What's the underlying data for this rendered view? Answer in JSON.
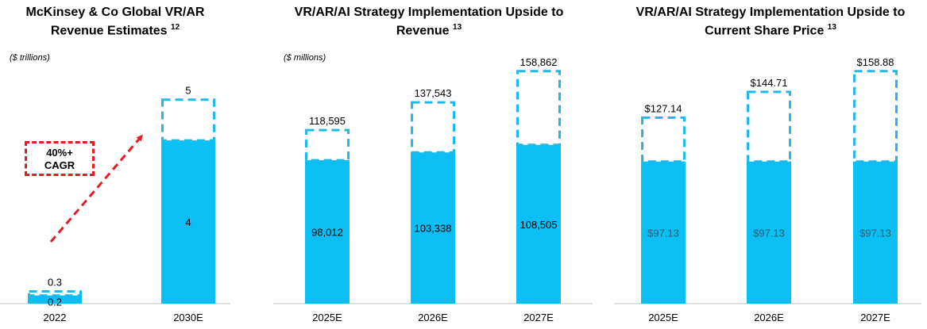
{
  "charts": [
    {
      "title_line1": "McKinsey & Co Global VR/AR",
      "title_line2": "Revenue Estimates",
      "footnote": "12",
      "unit": "($ trillions)",
      "annotation_line1": "40%+",
      "annotation_line2": "CAGR"
    },
    {
      "title_line1": "VR/AR/AI Strategy Implementation Upside to",
      "title_line2": "Revenue",
      "footnote": "13",
      "unit": "($ millions)"
    },
    {
      "title_line1": "VR/AR/AI Strategy Implementation Upside to",
      "title_line2": "Current Share Price",
      "footnote": "13"
    }
  ],
  "colors": {
    "bar": "#0bbff4",
    "dash": "#1fb8ea",
    "arrow": "#e31c23"
  },
  "chart_data": [
    {
      "type": "bar",
      "stacked": true,
      "categories": [
        "2022",
        "2030E"
      ],
      "series": [
        {
          "style": "solid",
          "values": [
            0.2,
            4
          ],
          "labels": [
            "0.2",
            "4"
          ]
        },
        {
          "style": "dashed-outline",
          "values": [
            0.1,
            1
          ],
          "labels": [
            "0.3",
            "5"
          ]
        }
      ],
      "ylim": [
        0,
        5.5
      ]
    },
    {
      "type": "bar",
      "stacked": true,
      "categories": [
        "2025E",
        "2026E",
        "2027E"
      ],
      "series": [
        {
          "style": "solid",
          "values": [
            98012,
            103338,
            108505
          ],
          "labels": [
            "98,012",
            "103,338",
            "108,505"
          ]
        },
        {
          "style": "dashed-outline",
          "values": [
            20583,
            34205,
            50357
          ],
          "labels": [
            "118,595",
            "137,543",
            "158,862"
          ]
        }
      ],
      "ylim": [
        0,
        175000
      ]
    },
    {
      "type": "bar",
      "stacked": true,
      "categories": [
        "2025E",
        "2026E",
        "2027E"
      ],
      "series": [
        {
          "style": "solid",
          "values": [
            97.13,
            97.13,
            97.13
          ],
          "labels": [
            "$97.13",
            "$97.13",
            "$97.13"
          ]
        },
        {
          "style": "dashed-outline",
          "values": [
            30.01,
            47.58,
            61.75
          ],
          "labels": [
            "$127.14",
            "$144.71",
            "$158.88"
          ]
        }
      ],
      "ylim": [
        0,
        175
      ]
    }
  ]
}
